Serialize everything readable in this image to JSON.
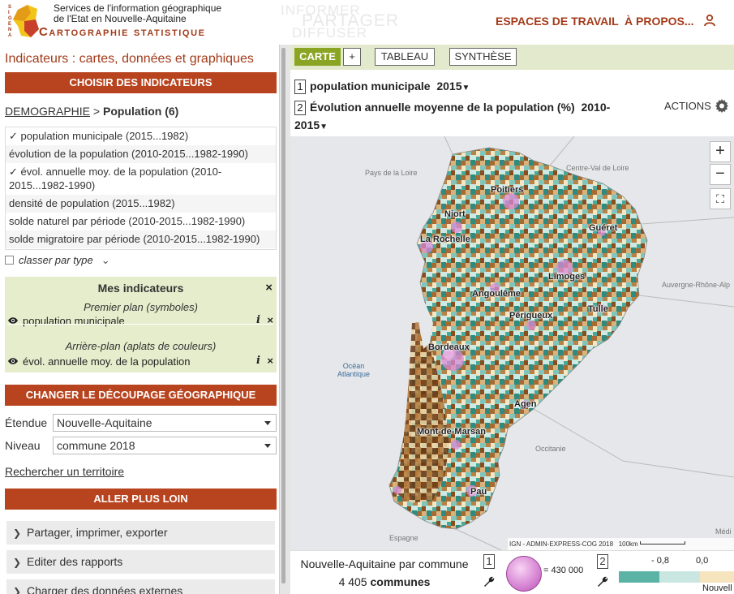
{
  "header": {
    "logo_line1": "Services de l'information géographique",
    "logo_line2": "de l'Etat en Nouvelle-Aquitaine",
    "logo_line3": "Cartographie statistique",
    "logo_vertical": "SIGENA",
    "ghost_1": "INFORMER",
    "ghost_2": "PARTAGER",
    "ghost_3": "DIFFUSER",
    "nav_workspaces": "ESPACES DE TRAVAIL",
    "nav_about": "À PROPOS...",
    "user_icon": "user-icon"
  },
  "left": {
    "title": "Indicateurs : cartes, données et graphiques",
    "choose_btn": "CHOISIR DES INDICATEURS",
    "crumb_theme": "DEMOGRAPHIE",
    "crumb_sep": ">",
    "crumb_sub": "Population (6)",
    "indicators": [
      "✓ population municipale (2015...1982)",
      "évolution de la population (2010-2015...1982-1990)",
      "✓ évol. annuelle moy. de la population (2010-2015...1982-1990)",
      "densité de population (2015...1982)",
      "solde naturel par période (2010-2015...1982-1990)",
      "solde migratoire par période (2010-2015...1982-1990)"
    ],
    "classer": "classer par type",
    "mes": {
      "title": "Mes indicateurs",
      "close": "×",
      "foreground_label": "Premier plan (symboles)",
      "foreground_item": "population municipale",
      "background_label": "Arrière-plan (aplats de couleurs)",
      "background_item": "évol. annuelle moy. de la population",
      "info": "i",
      "remove": "×"
    },
    "change_btn": "CHANGER LE DÉCOUPAGE GÉOGRAPHIQUE",
    "etendue_label": "Étendue",
    "etendue_value": "Nouvelle-Aquitaine",
    "niveau_label": "Niveau",
    "niveau_value": "commune 2018",
    "search_link": "Rechercher un territoire",
    "further_btn": "ALLER PLUS LOIN",
    "accordions": [
      "Partager, imprimer, exporter",
      "Editer des rapports",
      "Charger des données externes"
    ]
  },
  "right": {
    "tabs": {
      "carte": "CARTE",
      "plus": "+",
      "tableau": "TABLEAU",
      "synthese": "SYNTHÈSE"
    },
    "layer1_num": "1",
    "layer1_name": "population municipale",
    "layer1_year": "2015",
    "layer2_num": "2",
    "layer2_name": "Évolution annuelle moyenne de la population (%)",
    "layer2_year_a": "2010-",
    "layer2_year_b": "2015",
    "actions": "ACTIONS",
    "map": {
      "zoom_in": "+",
      "zoom_out": "−",
      "regions": [
        "Pays de la Loire",
        "Centre-Val de Loire",
        "Auvergne-Rhône-Alp",
        "Occitanie",
        "Espagne"
      ],
      "ocean": [
        "Océan",
        "Atlantique"
      ],
      "cities": [
        "Poitiers",
        "Niort",
        "La Rochelle",
        "Guéret",
        "Limoges",
        "Angoulême",
        "Périgueux",
        "Tulle",
        "Bordeaux",
        "Agen",
        "Mont-de-Marsan",
        "Pau"
      ],
      "attribution": "IGN - ADMIN-EXPRESS-COG 2018",
      "scale": "100km",
      "corner": "Médi"
    },
    "legend": {
      "line1": "Nouvelle-Aquitaine par commune",
      "count": "4 405",
      "count_unit": "communes",
      "box1": "1",
      "bubble_value": "= 430 000",
      "box2": "2",
      "scale_min": "- 0,8",
      "scale_mid": "0,0",
      "scale_right": "Nouvell",
      "colors": [
        "#5bb3a6",
        "#c9e6e1",
        "#f5e4be"
      ]
    }
  }
}
